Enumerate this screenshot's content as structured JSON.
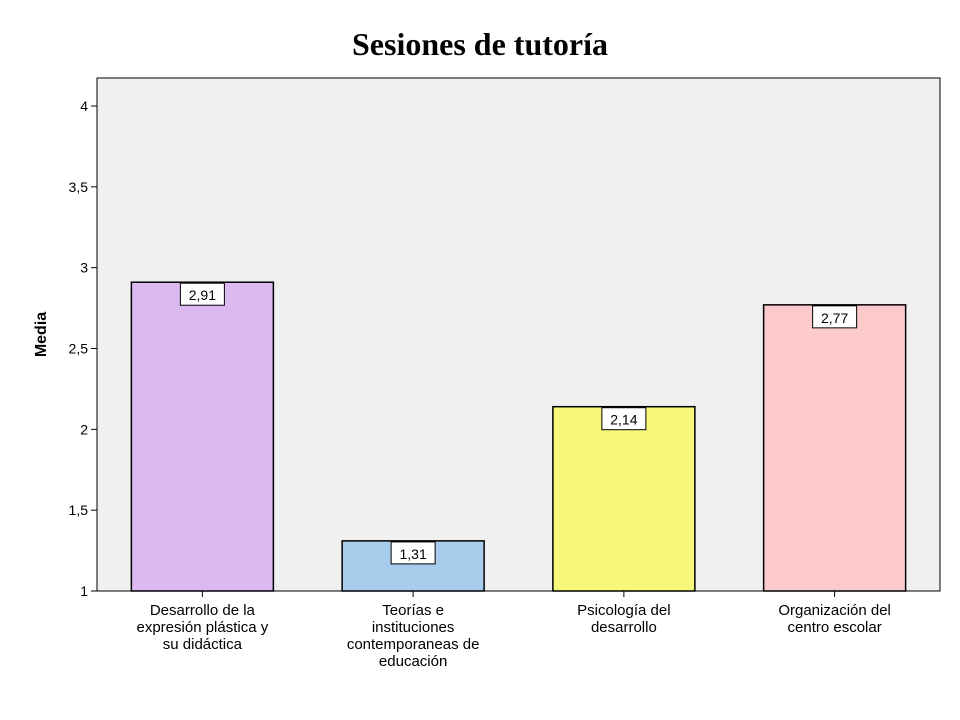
{
  "chart_data": {
    "type": "bar",
    "title": "Sesiones de tutoría",
    "xlabel": "",
    "ylabel": "Media",
    "ylim": [
      1,
      4
    ],
    "yticks": [
      1,
      1.5,
      2,
      2.5,
      3,
      3.5,
      4
    ],
    "ytick_labels": [
      "1",
      "1,5",
      "2",
      "2,5",
      "3",
      "3,5",
      "4"
    ],
    "grid": false,
    "categories": [
      "Desarrollo de la expresión plástica y su didáctica",
      "Teorías e instituciones contemporaneas de educación",
      "Psicología del desarrollo",
      "Organización del centro escolar"
    ],
    "category_lines": [
      [
        "Desarrollo de la",
        "expresión plástica y",
        "su didáctica"
      ],
      [
        "Teorías e",
        "instituciones",
        "contemporaneas de",
        "educación"
      ],
      [
        "Psicología del",
        "desarrollo"
      ],
      [
        "Organización del",
        "centro escolar"
      ]
    ],
    "values": [
      2.91,
      1.31,
      2.14,
      2.77
    ],
    "data_labels": [
      "2,91",
      "1,31",
      "2,14",
      "2,77"
    ],
    "colors": [
      "#dcb8f0",
      "#a8cdec",
      "#f7f77a",
      "#fccaca"
    ],
    "plot_background": "#f0f0f0"
  }
}
